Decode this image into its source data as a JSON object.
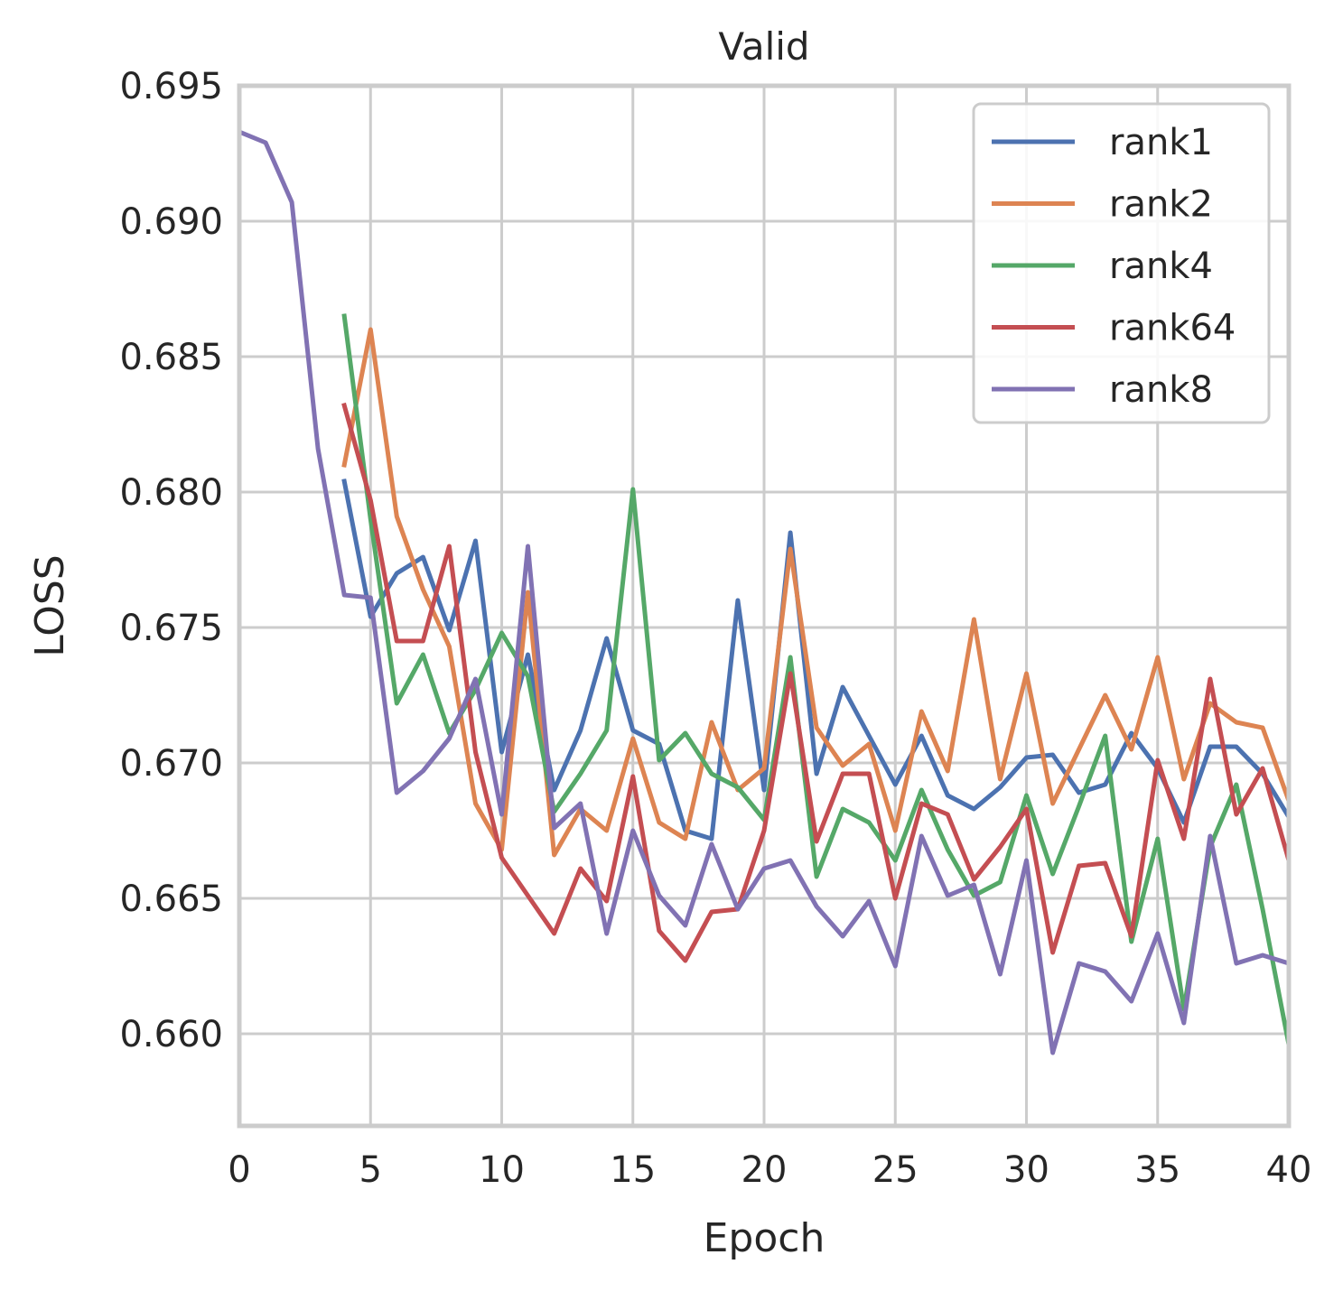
{
  "chart_data": {
    "type": "line",
    "title": "Valid",
    "xlabel": "Epoch",
    "ylabel": "LOSS",
    "xlim": [
      0,
      40
    ],
    "ylim": [
      0.6566,
      0.695
    ],
    "xticks": [
      0,
      5,
      10,
      15,
      20,
      25,
      30,
      35,
      40
    ],
    "xtick_labels": [
      "0",
      "5",
      "10",
      "15",
      "20",
      "25",
      "30",
      "35",
      "40"
    ],
    "yticks": [
      0.66,
      0.665,
      0.67,
      0.675,
      0.68,
      0.685,
      0.69,
      0.695
    ],
    "ytick_labels": [
      "0.660",
      "0.665",
      "0.670",
      "0.675",
      "0.680",
      "0.685",
      "0.690",
      "0.695"
    ],
    "grid": true,
    "legend_position": "top-right",
    "series": [
      {
        "name": "rank1",
        "color": "#4c72b0",
        "x": [
          4,
          5,
          6,
          7,
          8,
          9,
          10,
          11,
          12,
          13,
          14,
          15,
          16,
          17,
          18,
          19,
          20,
          21,
          22,
          23,
          24,
          25,
          26,
          27,
          28,
          29,
          30,
          31,
          32,
          33,
          34,
          35,
          36,
          37,
          38,
          39,
          40
        ],
        "y": [
          0.6804,
          0.6754,
          0.677,
          0.6776,
          0.6749,
          0.6782,
          0.6704,
          0.674,
          0.669,
          0.6712,
          0.6746,
          0.6712,
          0.6707,
          0.6675,
          0.6672,
          0.676,
          0.669,
          0.6785,
          0.6696,
          0.6728,
          0.671,
          0.6692,
          0.671,
          0.6688,
          0.6683,
          0.6691,
          0.6702,
          0.6703,
          0.6689,
          0.6692,
          0.6711,
          0.6698,
          0.6678,
          0.6706,
          0.6706,
          0.6696,
          0.668
        ]
      },
      {
        "name": "rank2",
        "color": "#dd8452",
        "x": [
          4,
          5,
          6,
          7,
          8,
          9,
          10,
          11,
          12,
          13,
          14,
          15,
          16,
          17,
          18,
          19,
          20,
          21,
          22,
          23,
          24,
          25,
          26,
          27,
          28,
          29,
          30,
          31,
          32,
          33,
          34,
          35,
          36,
          37,
          38,
          39,
          40
        ],
        "y": [
          0.681,
          0.686,
          0.6791,
          0.6764,
          0.6743,
          0.6685,
          0.6668,
          0.6763,
          0.6666,
          0.6683,
          0.6675,
          0.6709,
          0.6678,
          0.6672,
          0.6715,
          0.669,
          0.6698,
          0.6779,
          0.6713,
          0.6699,
          0.6707,
          0.6675,
          0.6719,
          0.6697,
          0.6753,
          0.6694,
          0.6733,
          0.6685,
          0.6705,
          0.6725,
          0.6705,
          0.6739,
          0.6694,
          0.6722,
          0.6715,
          0.6713,
          0.6686
        ]
      },
      {
        "name": "rank4",
        "color": "#55a868",
        "x": [
          4,
          5,
          6,
          7,
          8,
          9,
          10,
          11,
          12,
          13,
          14,
          15,
          16,
          17,
          18,
          19,
          20,
          21,
          22,
          23,
          24,
          25,
          26,
          27,
          28,
          29,
          30,
          31,
          32,
          33,
          34,
          35,
          36,
          37,
          38,
          39,
          40
        ],
        "y": [
          0.6865,
          0.679,
          0.6722,
          0.674,
          0.6711,
          0.6727,
          0.6748,
          0.6732,
          0.6682,
          0.6696,
          0.6712,
          0.6801,
          0.6701,
          0.6711,
          0.6696,
          0.6691,
          0.6679,
          0.6739,
          0.6658,
          0.6683,
          0.6678,
          0.6664,
          0.669,
          0.6668,
          0.6651,
          0.6656,
          0.6688,
          0.6659,
          0.6684,
          0.671,
          0.6634,
          0.6672,
          0.6609,
          0.6669,
          0.6692,
          0.6646,
          0.6596
        ]
      },
      {
        "name": "rank64",
        "color": "#c44e52",
        "x": [
          4,
          5,
          6,
          7,
          8,
          9,
          10,
          11,
          12,
          13,
          14,
          15,
          16,
          17,
          18,
          19,
          20,
          21,
          22,
          23,
          24,
          25,
          26,
          27,
          28,
          29,
          30,
          31,
          32,
          33,
          34,
          35,
          36,
          37,
          38,
          39,
          40
        ],
        "y": [
          0.6832,
          0.6797,
          0.6745,
          0.6745,
          0.678,
          0.6704,
          0.6665,
          0.6651,
          0.6637,
          0.6661,
          0.6649,
          0.6695,
          0.6638,
          0.6627,
          0.6645,
          0.6646,
          0.6675,
          0.6733,
          0.6671,
          0.6696,
          0.6696,
          0.665,
          0.6685,
          0.6681,
          0.6657,
          0.6669,
          0.6683,
          0.663,
          0.6662,
          0.6663,
          0.6636,
          0.6701,
          0.6672,
          0.6731,
          0.6681,
          0.6698,
          0.6664
        ]
      },
      {
        "name": "rank8",
        "color": "#8172b3",
        "x": [
          0,
          1,
          2,
          3,
          4,
          5,
          6,
          7,
          8,
          9,
          10,
          11,
          12,
          13,
          14,
          15,
          16,
          17,
          18,
          19,
          20,
          21,
          22,
          23,
          24,
          25,
          26,
          27,
          28,
          29,
          30,
          31,
          32,
          33,
          34,
          35,
          36,
          37,
          38,
          39,
          40
        ],
        "y": [
          0.6933,
          0.6929,
          0.6907,
          0.6816,
          0.6762,
          0.6761,
          0.6689,
          0.6697,
          0.6709,
          0.6731,
          0.6681,
          0.678,
          0.6676,
          0.6685,
          0.6637,
          0.6675,
          0.6651,
          0.664,
          0.667,
          0.6646,
          0.6661,
          0.6664,
          0.6647,
          0.6636,
          0.6649,
          0.6625,
          0.6673,
          0.6651,
          0.6655,
          0.6622,
          0.6664,
          0.6593,
          0.6626,
          0.6623,
          0.6612,
          0.6637,
          0.6604,
          0.6673,
          0.6626,
          0.6629,
          0.6626
        ]
      }
    ]
  }
}
